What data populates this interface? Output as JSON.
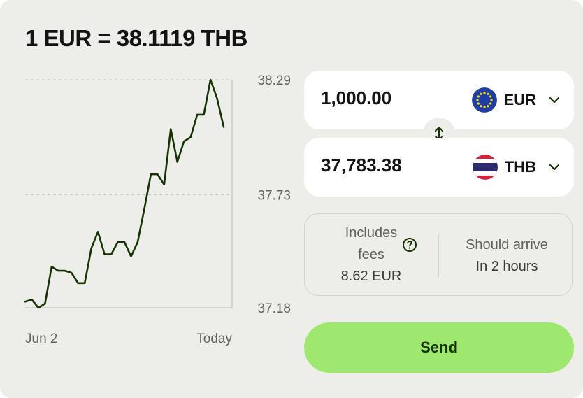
{
  "header": {
    "rate_text": "1 EUR = 38.1119 THB"
  },
  "chart_data": {
    "type": "line",
    "x_labels": [
      "Jun 2",
      "Today"
    ],
    "y_ticks": [
      "38.29",
      "37.73",
      "37.18"
    ],
    "ylim": [
      37.18,
      38.29
    ],
    "grid": true,
    "series": [
      {
        "color": "#163300",
        "values": [
          37.21,
          37.22,
          37.18,
          37.2,
          37.38,
          37.36,
          37.36,
          37.35,
          37.3,
          37.3,
          37.47,
          37.55,
          37.44,
          37.44,
          37.5,
          37.5,
          37.43,
          37.5,
          37.66,
          37.83,
          37.83,
          37.78,
          38.05,
          37.89,
          37.99,
          38.01,
          38.12,
          38.12,
          38.29,
          38.2,
          38.06
        ]
      }
    ]
  },
  "converter": {
    "send": {
      "amount": "1,000.00",
      "currency": "EUR",
      "flag_icon": "eu-flag-icon"
    },
    "receive": {
      "amount": "37,783.38",
      "currency": "THB",
      "flag_icon": "thailand-flag-icon"
    },
    "swap_icon": "swap-vertical-icon"
  },
  "info": {
    "fees_line1": "Includes",
    "fees_line2": "fees",
    "fees_amount": "8.62 EUR",
    "arrival_label": "Should arrive",
    "arrival_time": "In 2 hours"
  },
  "actions": {
    "send_label": "Send"
  },
  "colors": {
    "background": "#edeeea",
    "accent": "#9fe870",
    "accent_text": "#163300",
    "line": "#163300"
  }
}
